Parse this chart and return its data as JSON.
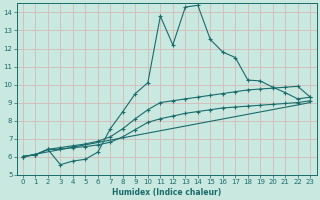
{
  "xlabel": "Humidex (Indice chaleur)",
  "bg_color": "#c8e8e0",
  "grid_color": "#d8b0b0",
  "line_color": "#1a6b6b",
  "xlim": [
    -0.5,
    23.5
  ],
  "ylim": [
    5,
    14.5
  ],
  "xticks": [
    0,
    1,
    2,
    3,
    4,
    5,
    6,
    7,
    8,
    9,
    10,
    11,
    12,
    13,
    14,
    15,
    16,
    17,
    18,
    19,
    20,
    21,
    22,
    23
  ],
  "yticks": [
    5,
    6,
    7,
    8,
    9,
    10,
    11,
    12,
    13,
    14
  ],
  "line1_x": [
    0,
    1,
    2,
    3,
    4,
    5,
    6,
    7,
    8,
    9,
    10,
    11,
    12,
    13,
    14,
    15,
    16,
    17,
    18,
    19,
    20,
    21,
    22,
    23
  ],
  "line1_y": [
    6.0,
    6.1,
    6.4,
    5.55,
    5.75,
    5.85,
    6.25,
    7.55,
    8.5,
    9.5,
    10.1,
    13.8,
    12.2,
    14.3,
    14.4,
    12.5,
    11.8,
    11.5,
    10.25,
    10.2,
    9.85,
    9.55,
    9.2,
    9.3
  ],
  "line2_x": [
    0,
    1,
    2,
    3,
    4,
    5,
    6,
    7,
    8,
    9,
    10,
    11,
    12,
    13,
    14,
    15,
    16,
    17,
    18,
    19,
    20,
    21,
    22,
    23
  ],
  "line2_y": [
    6.0,
    6.1,
    6.4,
    6.5,
    6.6,
    6.7,
    6.85,
    7.1,
    7.55,
    8.1,
    8.6,
    9.0,
    9.1,
    9.2,
    9.3,
    9.4,
    9.5,
    9.6,
    9.7,
    9.75,
    9.8,
    9.85,
    9.9,
    9.3
  ],
  "line3_x": [
    0,
    1,
    2,
    3,
    4,
    5,
    6,
    7,
    8,
    9,
    10,
    11,
    12,
    13,
    14,
    15,
    16,
    17,
    18,
    19,
    20,
    21,
    22,
    23
  ],
  "line3_y": [
    6.0,
    6.1,
    6.4,
    6.4,
    6.5,
    6.55,
    6.65,
    6.8,
    7.1,
    7.5,
    7.9,
    8.1,
    8.25,
    8.4,
    8.5,
    8.6,
    8.7,
    8.75,
    8.8,
    8.85,
    8.9,
    8.95,
    9.0,
    9.1
  ],
  "line4_x": [
    0,
    23
  ],
  "line4_y": [
    6.0,
    9.0
  ]
}
